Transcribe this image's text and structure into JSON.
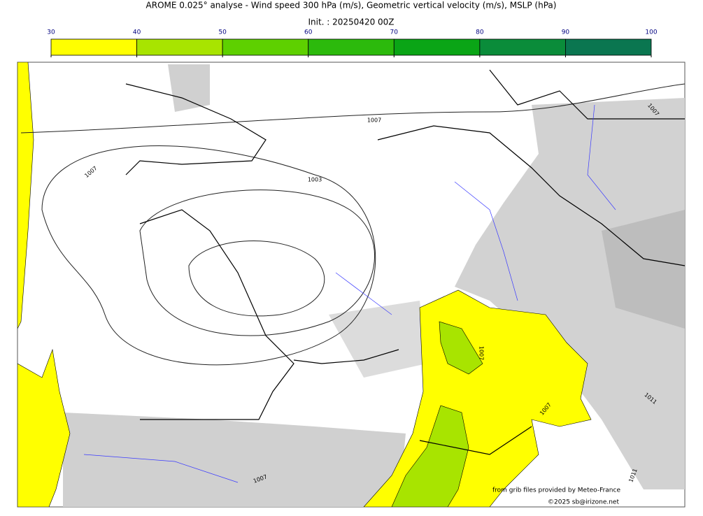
{
  "title": "AROME 0.025° analyse - Wind speed 300 hPa (m/s), Geometric vertical velocity (m/s), MSLP (hPa)",
  "subtitle": "Init. : 20250420 00Z",
  "colorbar": {
    "ticks": [
      30,
      40,
      50,
      60,
      70,
      80,
      90,
      100
    ],
    "colors": [
      "#ffff00",
      "#a8e400",
      "#5ed000",
      "#2cba0c",
      "#0aa516",
      "#0a8c3a",
      "#0a7650"
    ]
  },
  "isobar_labels": [
    "1007",
    "1007",
    "1003",
    "1007",
    "1007",
    "1007",
    "1011",
    "1007",
    "1011"
  ],
  "credits": [
    "from grib files provided by Meteo-France",
    "©2025 sb@irizone.net"
  ]
}
